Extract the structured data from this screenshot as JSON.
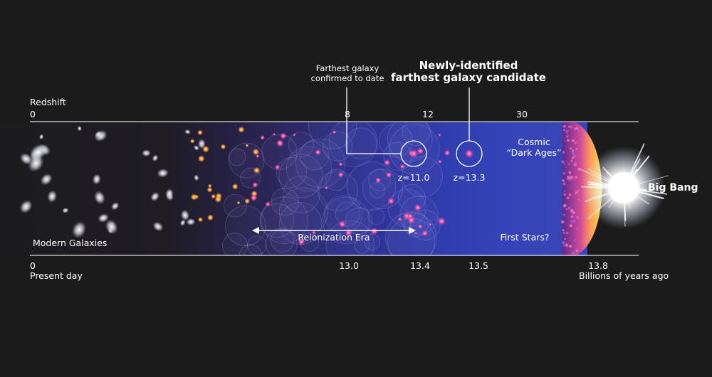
{
  "annotations": {
    "farthest_confirmed": [
      "Farthest galaxy",
      "confirmed to date"
    ],
    "newly_identified": [
      "Newly-identified",
      "farthest galaxy candidate"
    ],
    "z_confirmed": "z=11.0",
    "z_candidate": "z=13.3",
    "cosmic_dark_ages": [
      "Cosmic",
      "“Dark Ages”"
    ],
    "first_stars": "First Stars?",
    "reionization": "Reionization Era",
    "modern_galaxies": "Modern Galaxies",
    "big_bang": "Big Bang"
  },
  "redshift_axis": {
    "label": "Redshift",
    "ticks": [
      "0",
      "8",
      "12",
      "30"
    ]
  },
  "time_axis": {
    "start_value": "0",
    "start_label": "Present day",
    "ticks": [
      "13.0",
      "13.4",
      "13.5",
      "13.8"
    ],
    "unit_label": "Billions of years ago"
  },
  "colors": {
    "background": "#1b1b1b",
    "band_deep_blue": "#2f3aa8",
    "galaxy_pink": "#ff4fa0",
    "big_bang_yellow": "#ffe23a"
  }
}
